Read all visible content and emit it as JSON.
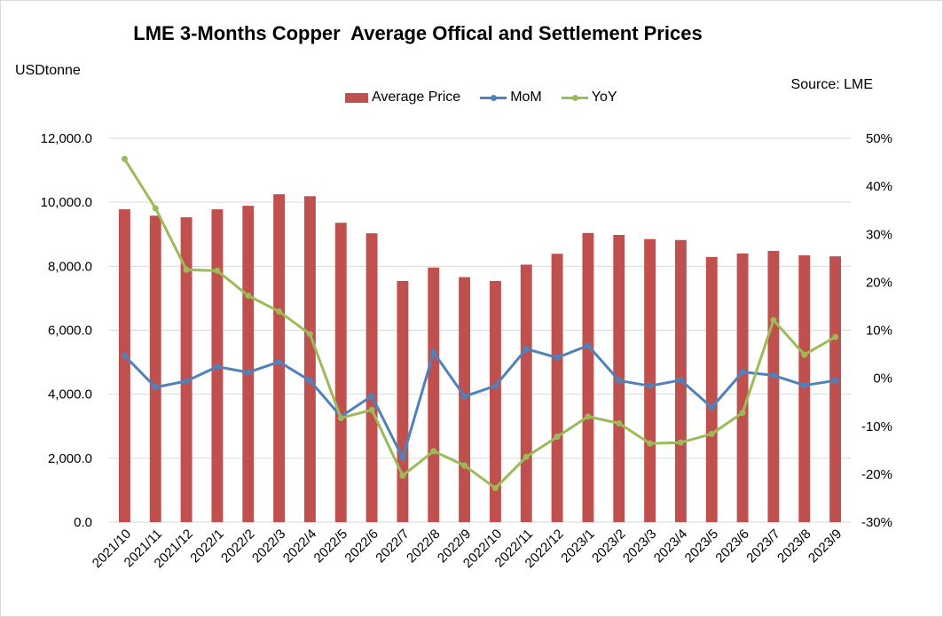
{
  "chart_data": {
    "type": "bar",
    "title": "LME 3-Months Copper  Average Offical and Settlement Prices",
    "ylabel": "USDtonne",
    "source": "Source: LME",
    "categories": [
      "2021/10",
      "2021/11",
      "2021/12",
      "2022/1",
      "2022/2",
      "2022/3",
      "2022/4",
      "2022/5",
      "2022/6",
      "2022/7",
      "2022/8",
      "2022/9",
      "2022/10",
      "2022/11",
      "2022/12",
      "2023/1",
      "2023/2",
      "2023/3",
      "2023/4",
      "2023/5",
      "2023/6",
      "2023/7",
      "2023/8",
      "2023/9"
    ],
    "series": [
      {
        "name": "Average Price",
        "type": "bar",
        "axis": "left",
        "color": "#C0504D",
        "values": [
          9780,
          9580,
          9530,
          9780,
          9890,
          10250,
          10190,
          9360,
          9030,
          7540,
          7960,
          7660,
          7540,
          8050,
          8390,
          9040,
          8980,
          8850,
          8820,
          8290,
          8400,
          8480,
          8340,
          8310
        ]
      },
      {
        "name": "MoM",
        "type": "line",
        "axis": "right",
        "color": "#4F81BD",
        "values": [
          4.7,
          -1.9,
          -0.6,
          2.4,
          1.2,
          3.4,
          -0.5,
          -8.0,
          -3.7,
          -16.6,
          5.4,
          -3.8,
          -1.6,
          6.1,
          4.3,
          6.8,
          -0.5,
          -1.6,
          -0.4,
          -6.1,
          1.3,
          0.6,
          -1.5,
          -0.5
        ]
      },
      {
        "name": "YoY",
        "type": "line",
        "axis": "right",
        "color": "#9BBB59",
        "values": [
          45.7,
          35.4,
          22.6,
          22.4,
          17.2,
          13.9,
          9.2,
          -8.3,
          -6.6,
          -20.3,
          -15.2,
          -18.2,
          -22.9,
          -16.4,
          -12.2,
          -8.0,
          -9.4,
          -13.6,
          -13.4,
          -11.6,
          -7.2,
          12.1,
          4.9,
          8.6
        ]
      }
    ],
    "ylim_left": [
      0,
      12000
    ],
    "left_ticks": [
      "0.0",
      "2,000.0",
      "4,000.0",
      "6,000.0",
      "8,000.0",
      "10,000.0",
      "12,000.0"
    ],
    "ylim_right": [
      -30,
      50
    ],
    "right_ticks": [
      "-30%",
      "-20%",
      "-10%",
      "0%",
      "10%",
      "20%",
      "30%",
      "40%",
      "50%"
    ],
    "grid": true,
    "legend_position": "top"
  }
}
